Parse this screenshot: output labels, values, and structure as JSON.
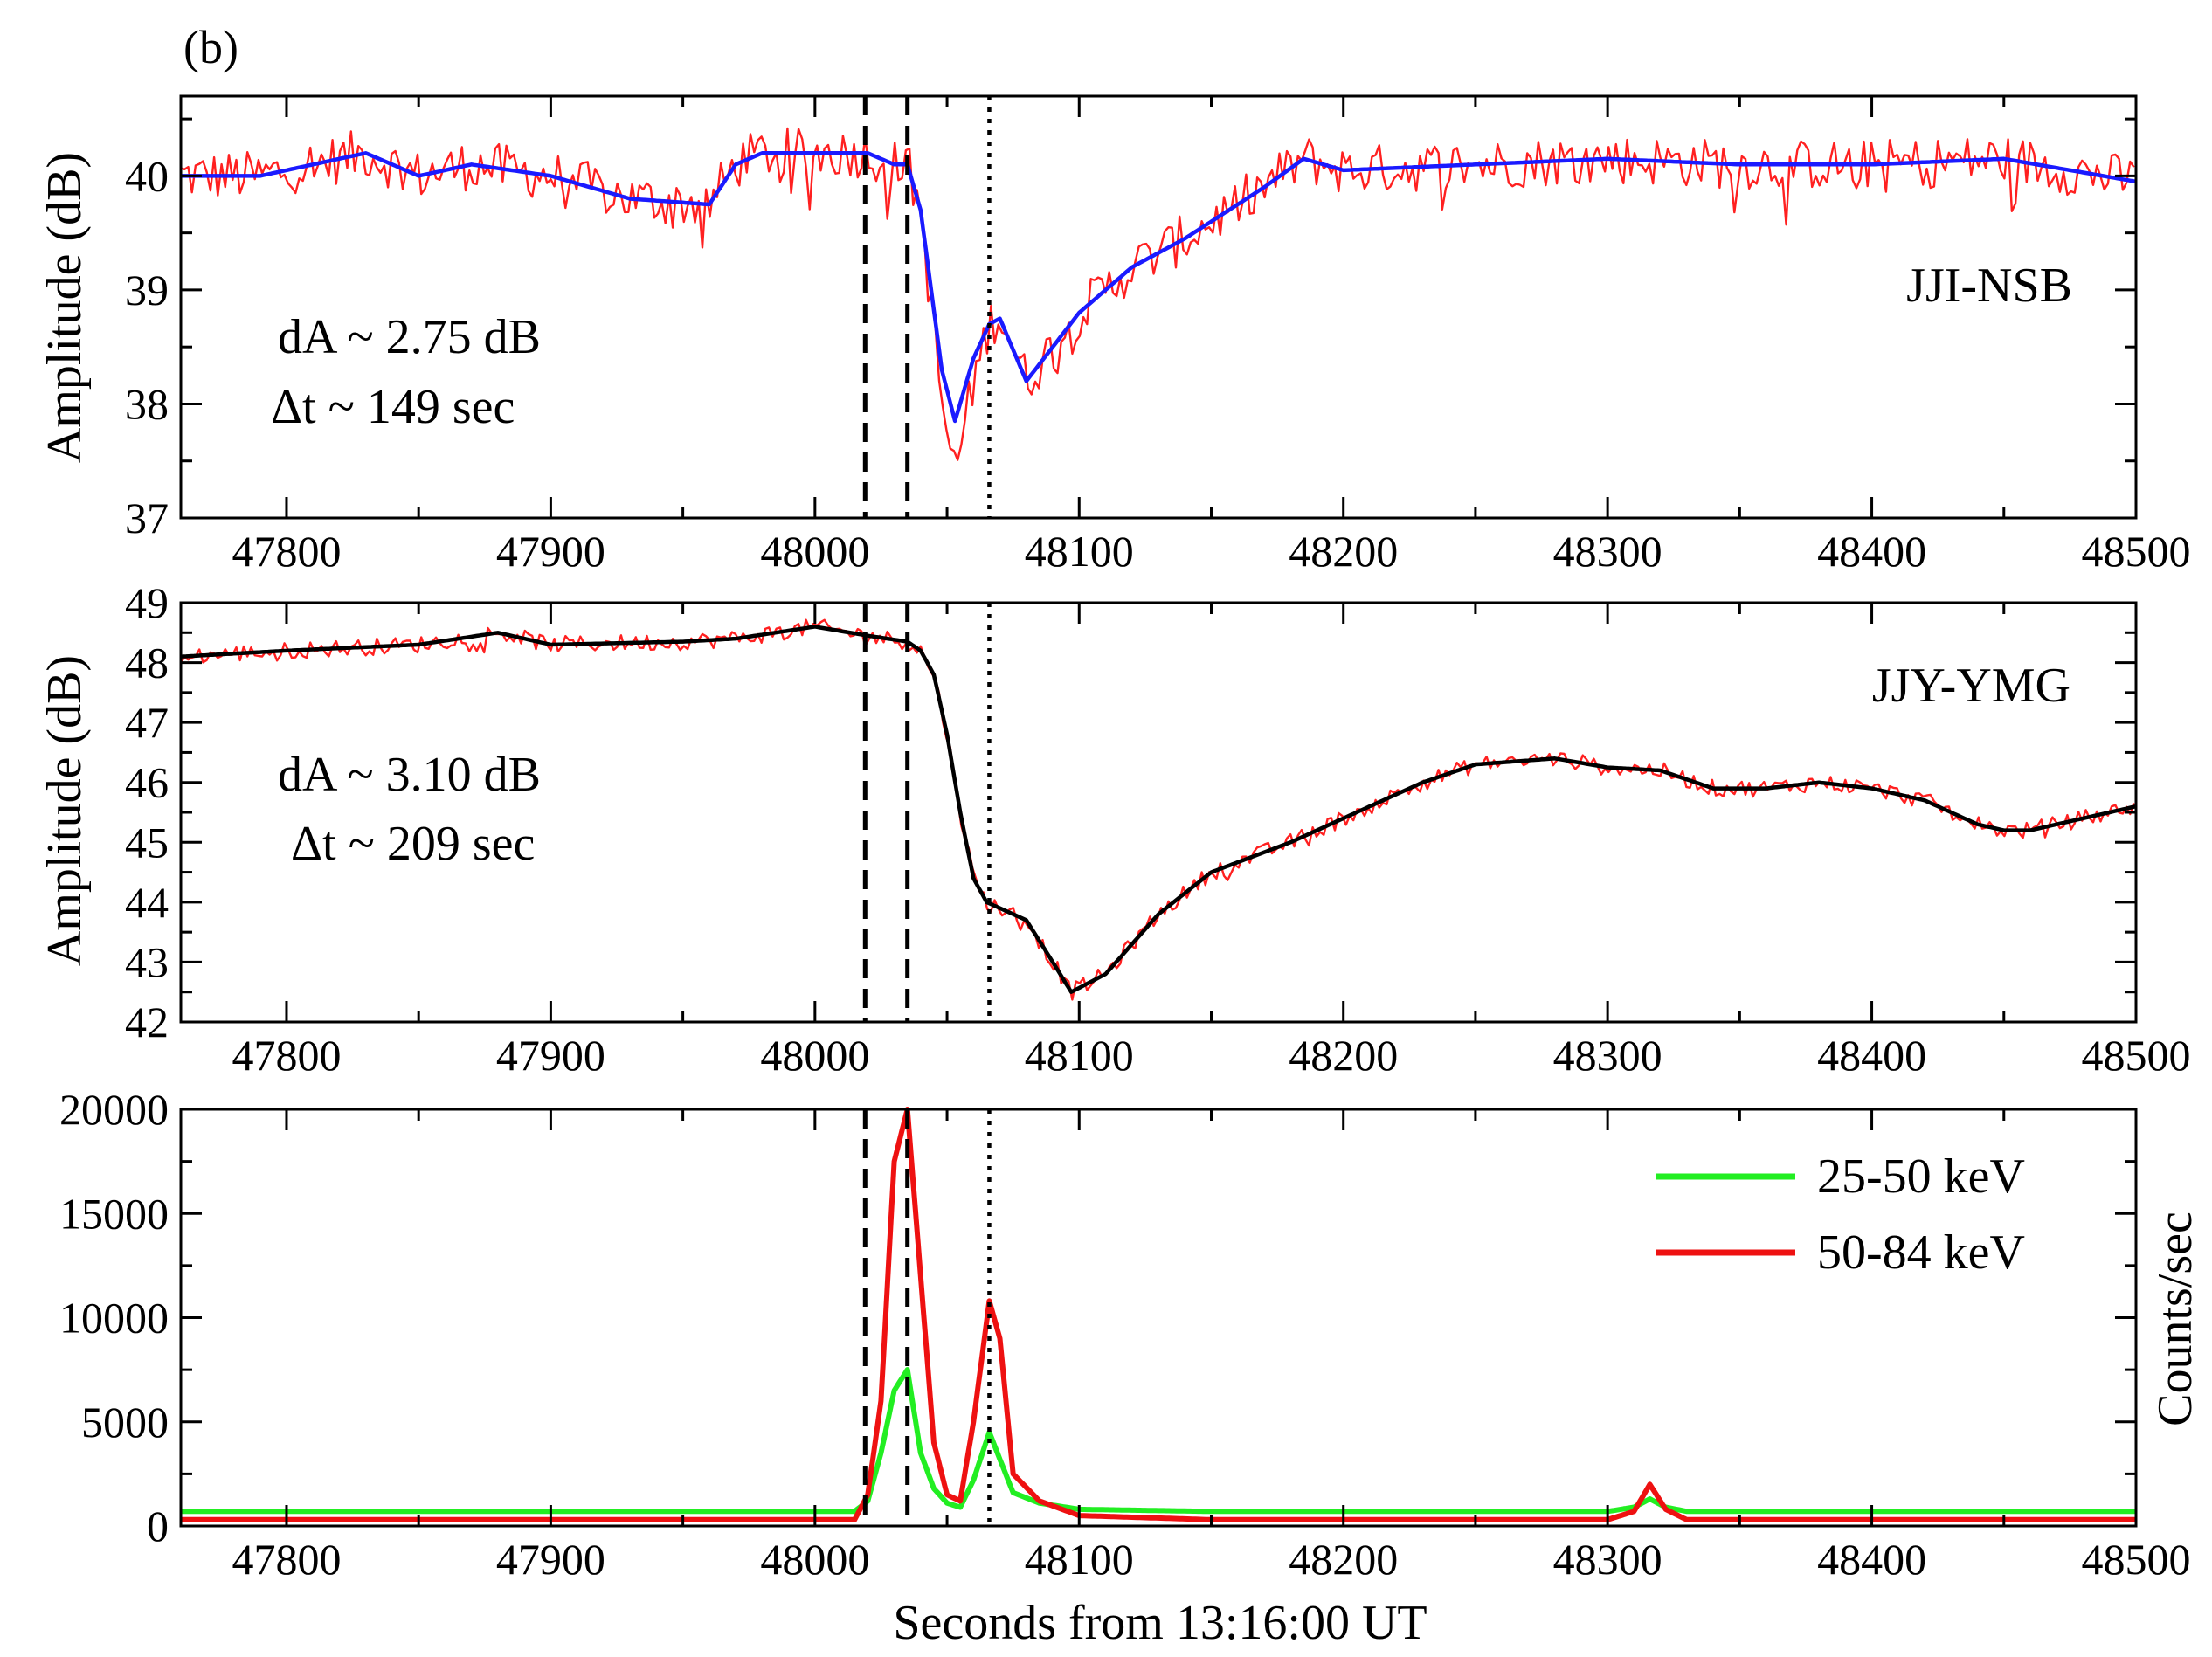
{
  "figure_label": "(b)",
  "xlabel": "Seconds from 13:16:00 UT",
  "chart_data": [
    {
      "type": "line",
      "name": "JJI-NSB",
      "station_label": "JJI-NSB",
      "ylabel": "Amplitude (dB)",
      "xlim": [
        47760,
        48500
      ],
      "ylim": [
        37,
        40.7
      ],
      "xticks": [
        47800,
        47900,
        48000,
        48100,
        48200,
        48300,
        48400,
        48500
      ],
      "yticks": [
        37,
        38,
        39,
        40
      ],
      "annotations": [
        "dA ~ 2.75 dB",
        "Δt ~ 149 sec"
      ],
      "vlines": {
        "dashed": [
          48019,
          48035
        ],
        "dotted": [
          48066
        ]
      },
      "series": [
        {
          "name": "raw",
          "color": "#ff2020",
          "x": [
            47760,
            47790,
            47800,
            47830,
            47850,
            47870,
            47900,
            47930,
            47960,
            47970,
            47980,
            48000,
            48020,
            48030,
            48035,
            48040,
            48048,
            48053,
            48060,
            48066,
            48070,
            48080,
            48100,
            48120,
            48140,
            48170,
            48185,
            48200,
            48250,
            48300,
            48350,
            48400,
            48450,
            48500
          ],
          "y": [
            40.0,
            40.0,
            40.05,
            40.2,
            40.0,
            40.1,
            40.0,
            39.8,
            39.75,
            40.1,
            40.2,
            40.2,
            40.2,
            40.1,
            40.1,
            39.7,
            38.0,
            37.4,
            38.2,
            38.7,
            38.8,
            38.2,
            38.8,
            39.2,
            39.45,
            39.9,
            40.15,
            40.05,
            40.1,
            40.15,
            40.1,
            40.1,
            40.15,
            39.95
          ],
          "noise": 0.22
        },
        {
          "name": "smoothed",
          "color": "#1a1aff",
          "x": [
            47760,
            47790,
            47800,
            47830,
            47850,
            47870,
            47900,
            47930,
            47960,
            47970,
            47980,
            48000,
            48020,
            48030,
            48035,
            48040,
            48048,
            48053,
            48060,
            48066,
            48070,
            48080,
            48100,
            48120,
            48140,
            48170,
            48185,
            48200,
            48250,
            48300,
            48350,
            48400,
            48450,
            48500
          ],
          "y": [
            40.0,
            40.0,
            40.05,
            40.2,
            40.0,
            40.1,
            40.0,
            39.8,
            39.75,
            40.1,
            40.2,
            40.2,
            40.2,
            40.1,
            40.1,
            39.7,
            38.3,
            37.85,
            38.4,
            38.7,
            38.75,
            38.2,
            38.8,
            39.2,
            39.45,
            39.9,
            40.15,
            40.05,
            40.1,
            40.15,
            40.1,
            40.1,
            40.15,
            39.95
          ]
        }
      ]
    },
    {
      "type": "line",
      "name": "JJY-YMG",
      "station_label": "JJY-YMG",
      "ylabel": "Amplitude (dB)",
      "xlim": [
        47760,
        48500
      ],
      "ylim": [
        42,
        49
      ],
      "xticks": [
        47800,
        47900,
        48000,
        48100,
        48200,
        48300,
        48400,
        48500
      ],
      "yticks": [
        42,
        43,
        44,
        45,
        46,
        47,
        48,
        49
      ],
      "annotations": [
        "dA ~ 3.10 dB",
        "Δt ~ 209 sec"
      ],
      "vlines": {
        "dashed": [
          48019,
          48035
        ],
        "dotted": [
          48066
        ]
      },
      "series": [
        {
          "name": "raw",
          "color": "#ff2020",
          "x": [
            47760,
            47800,
            47850,
            47880,
            47900,
            47950,
            47970,
            48000,
            48020,
            48035,
            48040,
            48045,
            48050,
            48055,
            48060,
            48065,
            48070,
            48080,
            48090,
            48097,
            48110,
            48130,
            48150,
            48180,
            48200,
            48230,
            48250,
            48280,
            48300,
            48320,
            48340,
            48360,
            48380,
            48400,
            48420,
            48440,
            48450,
            48460,
            48480,
            48500
          ],
          "y": [
            48.1,
            48.2,
            48.3,
            48.5,
            48.3,
            48.35,
            48.4,
            48.6,
            48.45,
            48.35,
            48.2,
            47.8,
            46.8,
            45.5,
            44.4,
            44.0,
            43.9,
            43.7,
            43.0,
            42.5,
            42.8,
            43.8,
            44.5,
            45.0,
            45.4,
            46.0,
            46.3,
            46.4,
            46.25,
            46.2,
            45.9,
            45.9,
            46.0,
            45.9,
            45.7,
            45.3,
            45.2,
            45.2,
            45.4,
            45.6
          ],
          "noise": 0.14
        },
        {
          "name": "smoothed",
          "color": "#000000",
          "x": [
            47760,
            47800,
            47850,
            47880,
            47900,
            47950,
            47970,
            48000,
            48020,
            48035,
            48040,
            48045,
            48050,
            48055,
            48060,
            48065,
            48070,
            48080,
            48090,
            48097,
            48110,
            48130,
            48150,
            48180,
            48200,
            48230,
            48250,
            48280,
            48300,
            48320,
            48340,
            48360,
            48380,
            48400,
            48420,
            48440,
            48450,
            48460,
            48480,
            48500
          ],
          "y": [
            48.1,
            48.2,
            48.3,
            48.5,
            48.3,
            48.35,
            48.4,
            48.6,
            48.45,
            48.35,
            48.2,
            47.8,
            46.8,
            45.5,
            44.4,
            44.0,
            43.9,
            43.7,
            43.0,
            42.5,
            42.8,
            43.8,
            44.5,
            45.0,
            45.4,
            46.0,
            46.3,
            46.4,
            46.25,
            46.2,
            45.9,
            45.9,
            46.0,
            45.9,
            45.7,
            45.3,
            45.2,
            45.2,
            45.4,
            45.6
          ]
        }
      ]
    },
    {
      "type": "line",
      "name": "X-ray counts",
      "ylabel": "Counts/sec",
      "xlim": [
        47760,
        48500
      ],
      "ylim": [
        0,
        20000
      ],
      "xticks": [
        47800,
        47900,
        48000,
        48100,
        48200,
        48300,
        48400,
        48500
      ],
      "yticks": [
        0,
        5000,
        10000,
        15000,
        20000
      ],
      "vlines": {
        "dashed": [
          48019,
          48035
        ],
        "dotted": [
          48066
        ]
      },
      "legend_position": "top-right",
      "series": [
        {
          "name": "25-50 keV",
          "color": "#22ee22",
          "x": [
            47760,
            47800,
            47850,
            47900,
            47950,
            48000,
            48015,
            48020,
            48025,
            48030,
            48035,
            48040,
            48045,
            48050,
            48055,
            48060,
            48066,
            48070,
            48075,
            48085,
            48100,
            48150,
            48200,
            48250,
            48300,
            48310,
            48316,
            48322,
            48330,
            48350,
            48400,
            48450,
            48500
          ],
          "y": [
            700,
            700,
            700,
            700,
            700,
            700,
            700,
            1200,
            3500,
            6500,
            7500,
            3500,
            1800,
            1100,
            900,
            2200,
            4500,
            3200,
            1600,
            1100,
            800,
            700,
            700,
            700,
            700,
            900,
            1300,
            900,
            700,
            700,
            700,
            700,
            700
          ]
        },
        {
          "name": "50-84 keV",
          "color": "#ee1111",
          "x": [
            47760,
            47800,
            47850,
            47900,
            47950,
            48000,
            48015,
            48020,
            48025,
            48030,
            48035,
            48040,
            48045,
            48050,
            48055,
            48060,
            48066,
            48070,
            48075,
            48085,
            48100,
            48150,
            48200,
            48250,
            48300,
            48310,
            48316,
            48322,
            48330,
            48350,
            48400,
            48450,
            48500
          ],
          "y": [
            300,
            300,
            300,
            300,
            300,
            300,
            300,
            1500,
            6000,
            17500,
            20000,
            12000,
            4000,
            1500,
            1200,
            5000,
            10800,
            9000,
            2500,
            1200,
            500,
            300,
            300,
            300,
            300,
            700,
            2000,
            800,
            300,
            300,
            300,
            300,
            300
          ]
        }
      ]
    }
  ]
}
